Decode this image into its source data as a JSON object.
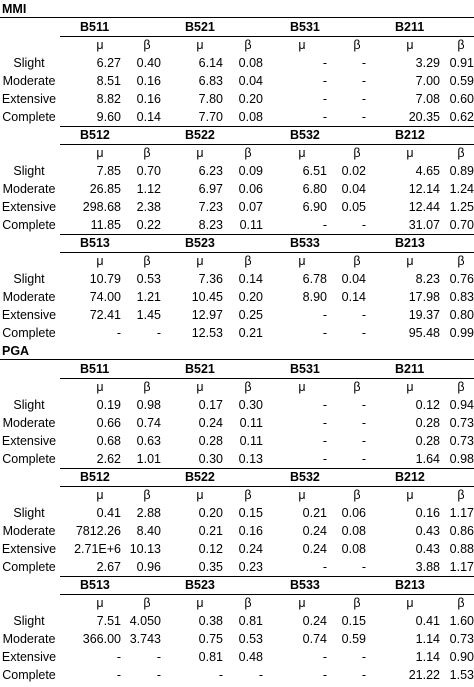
{
  "sections": [
    {
      "title": "MMI",
      "blocks": [
        {
          "buildings": [
            "B511",
            "B521",
            "B531",
            "B211"
          ],
          "params": [
            "μ",
            "β",
            "μ",
            "β",
            "μ",
            "β",
            "μ",
            "β"
          ],
          "rows": [
            {
              "label": "Slight",
              "values": [
                "6.27",
                "0.40",
                "6.14",
                "0.08",
                "-",
                "-",
                "3.29",
                "0.91"
              ]
            },
            {
              "label": "Moderate",
              "values": [
                "8.51",
                "0.16",
                "6.83",
                "0.04",
                "-",
                "-",
                "7.00",
                "0.59"
              ]
            },
            {
              "label": "Extensive",
              "values": [
                "8.82",
                "0.16",
                "7.80",
                "0.20",
                "-",
                "-",
                "7.08",
                "0.60"
              ]
            },
            {
              "label": "Complete",
              "values": [
                "9.60",
                "0.14",
                "7.70",
                "0.08",
                "-",
                "-",
                "20.35",
                "0.62"
              ]
            }
          ]
        },
        {
          "buildings": [
            "B512",
            "B522",
            "B532",
            "B212"
          ],
          "params": [
            "μ",
            "β",
            "μ",
            "β",
            "μ",
            "β",
            "μ",
            "β"
          ],
          "rows": [
            {
              "label": "Slight",
              "values": [
                "7.85",
                "0.70",
                "6.23",
                "0.09",
                "6.51",
                "0.02",
                "4.65",
                "0.89"
              ]
            },
            {
              "label": "Moderate",
              "values": [
                "26.85",
                "1.12",
                "6.97",
                "0.06",
                "6.80",
                "0.04",
                "12.14",
                "1.24"
              ]
            },
            {
              "label": "Extensive",
              "values": [
                "298.68",
                "2.38",
                "7.23",
                "0.07",
                "6.90",
                "0.05",
                "12.44",
                "1.25"
              ]
            },
            {
              "label": "Complete",
              "values": [
                "11.85",
                "0.22",
                "8.23",
                "0.11",
                "-",
                "-",
                "31.07",
                "0.70"
              ]
            }
          ]
        },
        {
          "buildings": [
            "B513",
            "B523",
            "B533",
            "B213"
          ],
          "params": [
            "μ",
            "β",
            "μ",
            "β",
            "μ",
            "β",
            "μ",
            "β"
          ],
          "rows": [
            {
              "label": "Slight",
              "values": [
                "10.79",
                "0.53",
                "7.36",
                "0.14",
                "6.78",
                "0.04",
                "8.23",
                "0.76"
              ]
            },
            {
              "label": "Moderate",
              "values": [
                "74.00",
                "1.21",
                "10.45",
                "0.20",
                "8.90",
                "0.14",
                "17.98",
                "0.83"
              ]
            },
            {
              "label": "Extensive",
              "values": [
                "72.41",
                "1.45",
                "12.97",
                "0.25",
                "-",
                "-",
                "19.37",
                "0.80"
              ]
            },
            {
              "label": "Complete",
              "values": [
                "-",
                "-",
                "12.53",
                "0.21",
                "-",
                "-",
                "95.48",
                "0.99"
              ]
            }
          ]
        }
      ]
    },
    {
      "title": "PGA",
      "blocks": [
        {
          "buildings": [
            "B511",
            "B521",
            "B531",
            "B211"
          ],
          "params": [
            "μ",
            "β",
            "μ",
            "β",
            "μ",
            "β",
            "μ",
            "β"
          ],
          "rows": [
            {
              "label": "Slight",
              "values": [
                "0.19",
                "0.98",
                "0.17",
                "0.30",
                "-",
                "-",
                "0.12",
                "0.94"
              ]
            },
            {
              "label": "Moderate",
              "values": [
                "0.66",
                "0.74",
                "0.24",
                "0.11",
                "-",
                "-",
                "0.28",
                "0.73"
              ]
            },
            {
              "label": "Extensive",
              "values": [
                "0.68",
                "0.63",
                "0.28",
                "0.11",
                "-",
                "-",
                "0.28",
                "0.73"
              ]
            },
            {
              "label": "Complete",
              "values": [
                "2.62",
                "1.01",
                "0.30",
                "0.13",
                "-",
                "-",
                "1.64",
                "0.98"
              ]
            }
          ]
        },
        {
          "buildings": [
            "B512",
            "B522",
            "B532",
            "B212"
          ],
          "params": [
            "μ",
            "β",
            "μ",
            "β",
            "μ",
            "β",
            "μ",
            "β"
          ],
          "rows": [
            {
              "label": "Slight",
              "values": [
                "0.41",
                "2.88",
                "0.20",
                "0.15",
                "0.21",
                "0.06",
                "0.16",
                "1.17"
              ]
            },
            {
              "label": "Moderate",
              "values": [
                "7812.26",
                "8.40",
                "0.21",
                "0.16",
                "0.24",
                "0.08",
                "0.43",
                "0.86"
              ]
            },
            {
              "label": "Extensive",
              "values": [
                "2.71E+6",
                "10.13",
                "0.12",
                "0.24",
                "0.24",
                "0.08",
                "0.43",
                "0.88"
              ]
            },
            {
              "label": "Complete",
              "values": [
                "2.67",
                "0.96",
                "0.35",
                "0.23",
                "-",
                "-",
                "3.88",
                "1.17"
              ]
            }
          ]
        },
        {
          "buildings": [
            "B513",
            "B523",
            "B533",
            "B213"
          ],
          "params": [
            "μ",
            "β",
            "μ",
            "β",
            "μ",
            "β",
            "μ",
            "β"
          ],
          "rows": [
            {
              "label": "Slight",
              "values": [
                "7.51",
                "4.050",
                "0.38",
                "0.81",
                "0.24",
                "0.15",
                "0.41",
                "1.60"
              ]
            },
            {
              "label": "Moderate",
              "values": [
                "366.00",
                "3.743",
                "0.75",
                "0.53",
                "0.74",
                "0.59",
                "1.14",
                "0.73"
              ]
            },
            {
              "label": "Extensive",
              "values": [
                "-",
                "-",
                "0.81",
                "0.48",
                "-",
                "-",
                "1.14",
                "0.90"
              ]
            },
            {
              "label": "Complete",
              "values": [
                "-",
                "-",
                "-",
                "-",
                "-",
                "-",
                "21.22",
                "1.53"
              ]
            }
          ]
        }
      ]
    }
  ]
}
